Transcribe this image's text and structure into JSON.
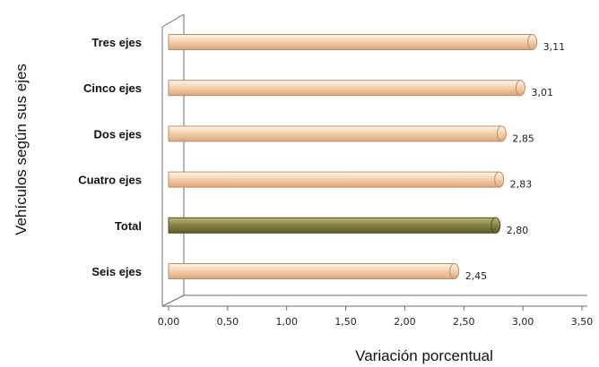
{
  "chart_data": {
    "type": "bar",
    "orientation": "horizontal",
    "categories": [
      "Tres ejes",
      "Cinco ejes",
      "Dos ejes",
      "Cuatro ejes",
      "Total",
      "Seis ejes"
    ],
    "values": [
      3.11,
      3.01,
      2.85,
      2.83,
      2.8,
      2.45
    ],
    "value_labels": [
      "3,11",
      "3,01",
      "2,85",
      "2,83",
      "2,80",
      "2,45"
    ],
    "highlight_category": "Total",
    "xlabel": "Variación porcentual",
    "ylabel": "Vehículos según sus ejes",
    "xlim": [
      0,
      3.5
    ],
    "xticks": [
      0,
      0.5,
      1.0,
      1.5,
      2.0,
      2.5,
      3.0,
      3.5
    ],
    "xtick_labels": [
      "0,00",
      "0,50",
      "1,00",
      "1,50",
      "2,00",
      "2,50",
      "3,00",
      "3,50"
    ],
    "grid": false,
    "legend": "none",
    "colors": {
      "bar": "#f6d2b0",
      "bar_edge": "#b98f6a",
      "highlight": "#8a8648",
      "highlight_edge": "#4e4b22",
      "axis": "#6e6e6e"
    }
  }
}
